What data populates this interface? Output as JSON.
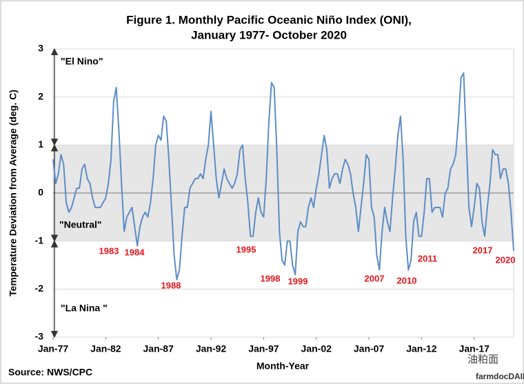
{
  "chart_data": {
    "type": "line",
    "title": [
      "Figure 1. Monthly Pacific Oceanic Niño Index (ONI),",
      "January 1977- October 2020"
    ],
    "x_label": "Month-Year",
    "y_label": "Temperature Deviation from Average (deg. C)",
    "source": "Source: NWS/CPC",
    "watermark": [
      "油粕面",
      "farmdocDAILY"
    ],
    "color": "#5b8cc7",
    "band": {
      "from": -1,
      "to": 1,
      "color": "#e6e6e6"
    },
    "grid": true,
    "xlim": [
      1977,
      2020.75
    ],
    "xticks": [
      {
        "value": 1977,
        "label": "Jan-77"
      },
      {
        "value": 1982,
        "label": "Jan-82"
      },
      {
        "value": 1987,
        "label": "Jan-87"
      },
      {
        "value": 1992,
        "label": "Jan-92"
      },
      {
        "value": 1997,
        "label": "Jan-97"
      },
      {
        "value": 2002,
        "label": "Jan-02"
      },
      {
        "value": 2007,
        "label": "Jan-07"
      },
      {
        "value": 2012,
        "label": "Jan-12"
      },
      {
        "value": 2017,
        "label": "Jan-17"
      }
    ],
    "ylim": [
      -3,
      3
    ],
    "yticks": [
      -3,
      -2,
      -1,
      0,
      1,
      2,
      3
    ],
    "regions": [
      "\"El Nino\"",
      "\"Neutral\"",
      "\"La Nina \""
    ],
    "annotations": [
      "1983",
      "1984",
      "1988",
      "1995",
      "1998",
      "1999",
      "2007",
      "2010",
      "2011",
      "2017",
      "2020"
    ],
    "x": [
      1977,
      1977.25,
      1977.5,
      1977.75,
      1978,
      1978.25,
      1978.5,
      1978.75,
      1979,
      1979.25,
      1979.5,
      1979.75,
      1980,
      1980.25,
      1980.5,
      1980.75,
      1981,
      1981.25,
      1981.5,
      1981.75,
      1982,
      1982.25,
      1982.5,
      1982.75,
      1983,
      1983.25,
      1983.5,
      1983.75,
      1984,
      1984.25,
      1984.5,
      1984.75,
      1985,
      1985.25,
      1985.5,
      1985.75,
      1986,
      1986.25,
      1986.5,
      1986.75,
      1987,
      1987.25,
      1987.5,
      1987.75,
      1988,
      1988.25,
      1988.5,
      1988.75,
      1989,
      1989.25,
      1989.5,
      1989.75,
      1990,
      1990.25,
      1990.5,
      1990.75,
      1991,
      1991.25,
      1991.5,
      1991.75,
      1992,
      1992.25,
      1992.5,
      1992.75,
      1993,
      1993.25,
      1993.5,
      1993.75,
      1994,
      1994.25,
      1994.5,
      1994.75,
      1995,
      1995.25,
      1995.5,
      1995.75,
      1996,
      1996.25,
      1996.5,
      1996.75,
      1997,
      1997.25,
      1997.5,
      1997.75,
      1998,
      1998.25,
      1998.5,
      1998.75,
      1999,
      1999.25,
      1999.5,
      1999.75,
      2000,
      2000.25,
      2000.5,
      2000.75,
      2001,
      2001.25,
      2001.5,
      2001.75,
      2002,
      2002.25,
      2002.5,
      2002.75,
      2003,
      2003.25,
      2003.5,
      2003.75,
      2004,
      2004.25,
      2004.5,
      2004.75,
      2005,
      2005.25,
      2005.5,
      2005.75,
      2006,
      2006.25,
      2006.5,
      2006.75,
      2007,
      2007.25,
      2007.5,
      2007.75,
      2008,
      2008.25,
      2008.5,
      2008.75,
      2009,
      2009.25,
      2009.5,
      2009.75,
      2010,
      2010.25,
      2010.5,
      2010.75,
      2011,
      2011.25,
      2011.5,
      2011.75,
      2012,
      2012.25,
      2012.5,
      2012.75,
      2013,
      2013.25,
      2013.5,
      2013.75,
      2014,
      2014.25,
      2014.5,
      2014.75,
      2015,
      2015.25,
      2015.5,
      2015.75,
      2016,
      2016.25,
      2016.5,
      2016.75,
      2017,
      2017.25,
      2017.5,
      2017.75,
      2018,
      2018.25,
      2018.5,
      2018.75,
      2019,
      2019.25,
      2019.5,
      2019.75,
      2020,
      2020.25,
      2020.5,
      2020.75
    ],
    "values": [
      0.7,
      0.2,
      0.4,
      0.8,
      0.6,
      -0.2,
      -0.4,
      -0.3,
      -0.1,
      0.1,
      0.1,
      0.5,
      0.6,
      0.3,
      0.2,
      -0.1,
      -0.3,
      -0.3,
      -0.3,
      -0.2,
      -0.1,
      0.2,
      0.7,
      1.9,
      2.2,
      1.3,
      0.2,
      -0.8,
      -0.5,
      -0.4,
      -0.3,
      -0.7,
      -1.1,
      -0.7,
      -0.5,
      -0.4,
      -0.5,
      -0.2,
      0.3,
      1.0,
      1.2,
      1.1,
      1.6,
      1.5,
      0.7,
      -0.3,
      -1.3,
      -1.8,
      -1.6,
      -0.9,
      -0.3,
      -0.3,
      0.1,
      0.2,
      0.3,
      0.3,
      0.4,
      0.3,
      0.7,
      1.0,
      1.7,
      1.0,
      0.3,
      -0.1,
      0.2,
      0.5,
      0.3,
      0.2,
      0.1,
      0.2,
      0.4,
      0.9,
      1.0,
      0.3,
      -0.2,
      -0.9,
      -0.9,
      -0.4,
      -0.1,
      -0.4,
      -0.5,
      0.3,
      1.5,
      2.3,
      2.2,
      0.9,
      -0.8,
      -1.4,
      -1.5,
      -1.0,
      -1.0,
      -1.5,
      -1.7,
      -0.8,
      -0.6,
      -0.7,
      -0.7,
      -0.3,
      -0.1,
      -0.3,
      0.1,
      0.4,
      0.8,
      1.2,
      0.9,
      0.1,
      0.3,
      0.4,
      0.4,
      0.2,
      0.5,
      0.7,
      0.6,
      0.4,
      0.0,
      -0.3,
      -0.8,
      -0.3,
      0.2,
      0.8,
      0.7,
      -0.3,
      -0.5,
      -1.3,
      -1.6,
      -0.8,
      -0.3,
      -0.6,
      -0.8,
      -0.1,
      0.5,
      1.2,
      1.6,
      0.7,
      -0.9,
      -1.6,
      -1.4,
      -0.6,
      -0.4,
      -0.9,
      -0.9,
      -0.4,
      0.3,
      0.3,
      -0.4,
      -0.3,
      -0.3,
      -0.3,
      -0.5,
      0.0,
      0.1,
      0.5,
      0.6,
      0.8,
      1.5,
      2.4,
      2.5,
      1.1,
      -0.3,
      -0.7,
      -0.3,
      0.2,
      0.1,
      -0.6,
      -0.9,
      -0.3,
      0.2,
      0.9,
      0.8,
      0.8,
      0.3,
      0.5,
      0.5,
      0.2,
      -0.4,
      -1.2
    ]
  }
}
